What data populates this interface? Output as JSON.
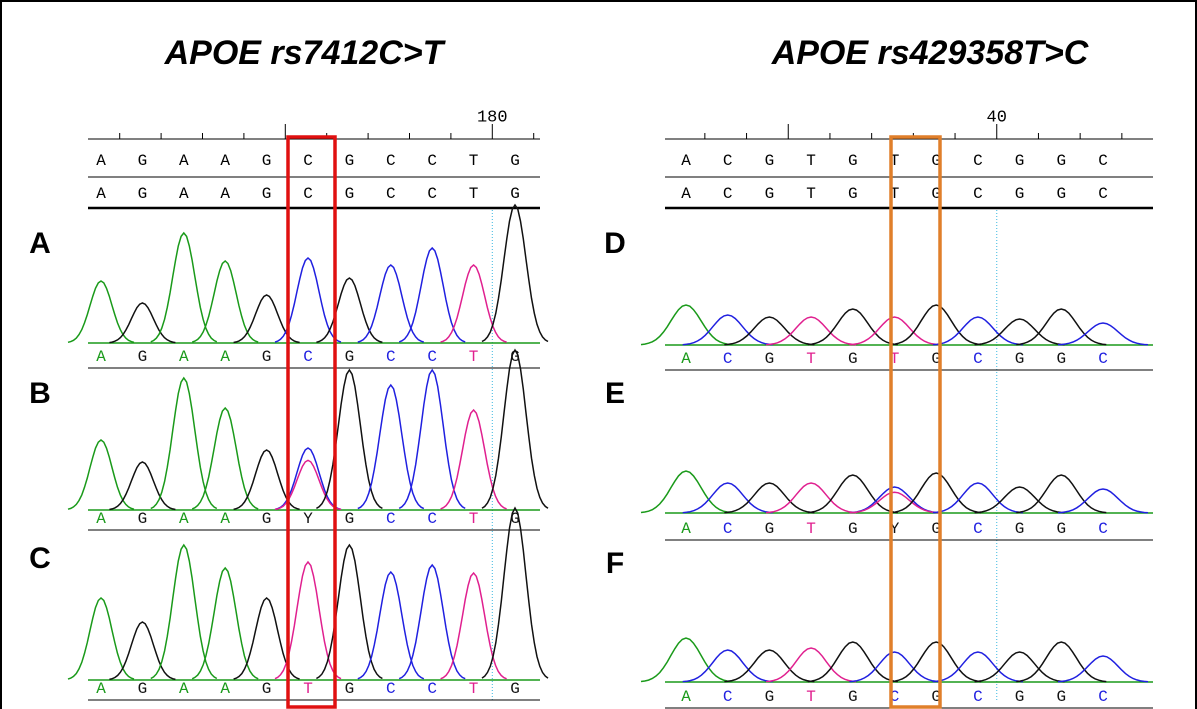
{
  "panels": [
    {
      "title": "APOE rs7412C>T",
      "position_label": "180",
      "reference": [
        "A",
        "G",
        "A",
        "A",
        "G",
        "C",
        "G",
        "C",
        "C",
        "T",
        "G"
      ],
      "consensus": [
        "A",
        "G",
        "A",
        "A",
        "G",
        "C",
        "G",
        "C",
        "C",
        "T",
        "G"
      ],
      "traces": [
        {
          "label": "A",
          "calls": [
            "A",
            "G",
            "A",
            "A",
            "G",
            "C",
            "G",
            "C",
            "C",
            "T",
            "G"
          ]
        },
        {
          "label": "B",
          "calls": [
            "A",
            "G",
            "A",
            "A",
            "G",
            "Y",
            "G",
            "C",
            "C",
            "T",
            "G"
          ]
        },
        {
          "label": "C",
          "calls": [
            "A",
            "G",
            "A",
            "A",
            "G",
            "T",
            "G",
            "C",
            "C",
            "T",
            "G"
          ]
        }
      ]
    },
    {
      "title": "APOE rs429358T>C",
      "position_label": "40",
      "reference": [
        "A",
        "C",
        "G",
        "T",
        "G",
        "T",
        "G",
        "C",
        "G",
        "G",
        "C"
      ],
      "consensus": [
        "A",
        "C",
        "G",
        "T",
        "G",
        "T",
        "G",
        "C",
        "G",
        "G",
        "C"
      ],
      "traces": [
        {
          "label": "D",
          "calls": [
            "A",
            "C",
            "G",
            "T",
            "G",
            "T",
            "G",
            "C",
            "G",
            "G",
            "C"
          ]
        },
        {
          "label": "E",
          "calls": [
            "A",
            "C",
            "G",
            "T",
            "G",
            "Y",
            "G",
            "C",
            "G",
            "G",
            "C"
          ]
        },
        {
          "label": "F",
          "calls": [
            "A",
            "C",
            "G",
            "T",
            "G",
            "C",
            "G",
            "C",
            "G",
            "G",
            "C"
          ]
        }
      ]
    }
  ]
}
